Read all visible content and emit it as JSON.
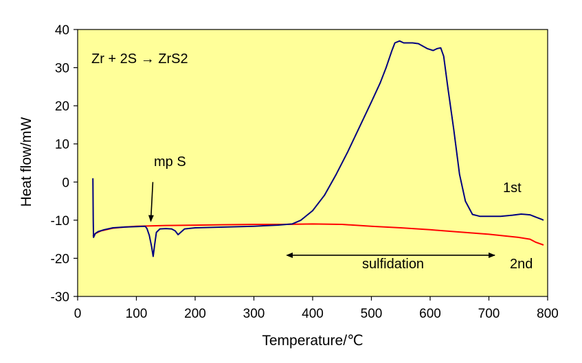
{
  "chart_data": {
    "type": "line",
    "xlabel": "Temperature/℃",
    "ylabel": "Heat flow/mW",
    "xlim": [
      0,
      800
    ],
    "ylim": [
      -30,
      40
    ],
    "x_ticks": [
      0,
      100,
      200,
      300,
      400,
      500,
      600,
      700,
      800
    ],
    "y_ticks": [
      -30,
      -20,
      -10,
      0,
      10,
      20,
      30,
      40
    ],
    "plot_background": "#ffff99",
    "grid": false,
    "series": [
      {
        "name": "1st",
        "color": "#000080",
        "points": [
          [
            26,
            1
          ],
          [
            26.5,
            -10
          ],
          [
            27,
            -14.5
          ],
          [
            30,
            -13.5
          ],
          [
            35,
            -13
          ],
          [
            45,
            -12.5
          ],
          [
            60,
            -12
          ],
          [
            80,
            -11.8
          ],
          [
            100,
            -11.7
          ],
          [
            115,
            -11.6
          ],
          [
            118,
            -12.2
          ],
          [
            122,
            -14
          ],
          [
            126,
            -17
          ],
          [
            128.5,
            -19.5
          ],
          [
            131,
            -16.5
          ],
          [
            134,
            -13.2
          ],
          [
            140,
            -12.3
          ],
          [
            150,
            -12.2
          ],
          [
            160,
            -12.3
          ],
          [
            166,
            -12.8
          ],
          [
            171,
            -13.8
          ],
          [
            176,
            -13.1
          ],
          [
            182,
            -12.3
          ],
          [
            200,
            -12
          ],
          [
            250,
            -11.8
          ],
          [
            300,
            -11.6
          ],
          [
            340,
            -11.3
          ],
          [
            365,
            -11
          ],
          [
            380,
            -10
          ],
          [
            400,
            -7.5
          ],
          [
            420,
            -3.5
          ],
          [
            440,
            2
          ],
          [
            460,
            8
          ],
          [
            480,
            14.5
          ],
          [
            500,
            21
          ],
          [
            515,
            26
          ],
          [
            525,
            30
          ],
          [
            535,
            34.5
          ],
          [
            540,
            36.5
          ],
          [
            548,
            37
          ],
          [
            555,
            36.5
          ],
          [
            570,
            36.5
          ],
          [
            580,
            36.3
          ],
          [
            595,
            35
          ],
          [
            605,
            34.5
          ],
          [
            612,
            35
          ],
          [
            618,
            35.2
          ],
          [
            623,
            33
          ],
          [
            630,
            25
          ],
          [
            640,
            14
          ],
          [
            650,
            2
          ],
          [
            660,
            -5
          ],
          [
            672,
            -8.5
          ],
          [
            685,
            -9
          ],
          [
            700,
            -9
          ],
          [
            720,
            -9
          ],
          [
            740,
            -8.7
          ],
          [
            755,
            -8.4
          ],
          [
            770,
            -8.6
          ],
          [
            780,
            -9.2
          ],
          [
            790,
            -9.8
          ],
          [
            793,
            -10
          ]
        ]
      },
      {
        "name": "2nd",
        "color": "#ff0000",
        "points": [
          [
            26,
            -14.2
          ],
          [
            30,
            -13.5
          ],
          [
            40,
            -12.8
          ],
          [
            60,
            -12.1
          ],
          [
            80,
            -11.8
          ],
          [
            100,
            -11.6
          ],
          [
            150,
            -11.4
          ],
          [
            200,
            -11.3
          ],
          [
            250,
            -11.2
          ],
          [
            300,
            -11.1
          ],
          [
            350,
            -11.1
          ],
          [
            400,
            -11
          ],
          [
            450,
            -11.1
          ],
          [
            500,
            -11.6
          ],
          [
            550,
            -12
          ],
          [
            600,
            -12.5
          ],
          [
            650,
            -13.1
          ],
          [
            700,
            -13.7
          ],
          [
            750,
            -14.5
          ],
          [
            770,
            -15
          ],
          [
            780,
            -15.8
          ],
          [
            793,
            -16.5
          ]
        ]
      }
    ],
    "annotations": {
      "reaction": "Zr + 2S → ZrS2",
      "mp": "mp S",
      "sulfidation": "sulfidation",
      "first": "1st",
      "second": "2nd"
    },
    "sulfidation_range": [
      365,
      710
    ],
    "mp_arrow": {
      "x": 128,
      "y_from": 0,
      "y_to": -10.3
    }
  }
}
